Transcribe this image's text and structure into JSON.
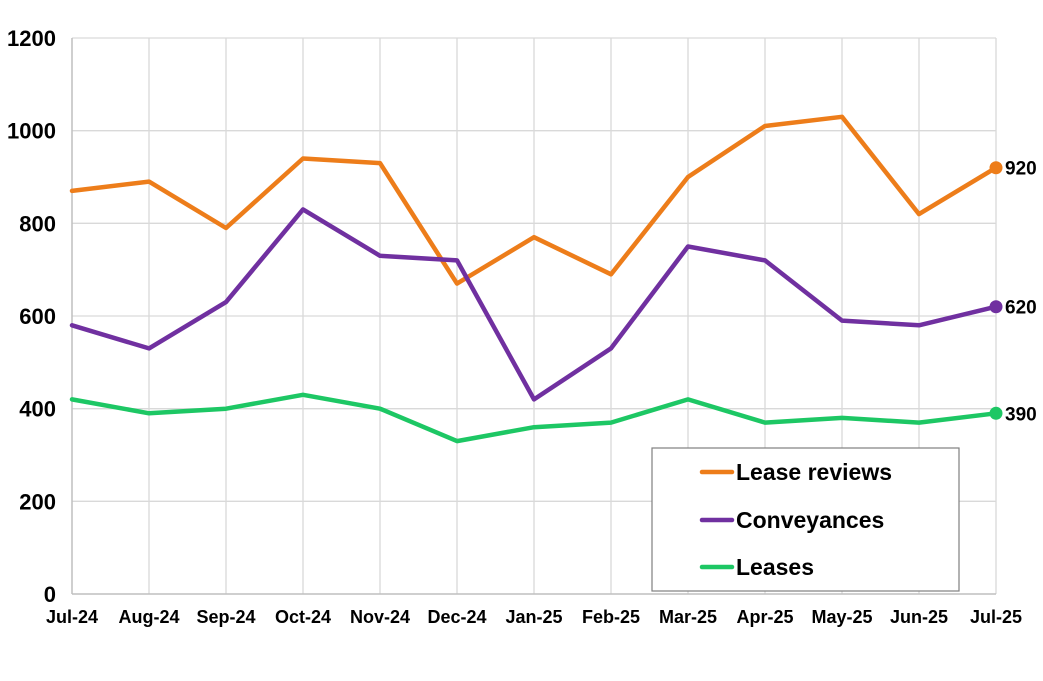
{
  "chart_data": {
    "type": "line",
    "title": "",
    "xlabel": "",
    "ylabel": "",
    "categories": [
      "Jul-24",
      "Aug-24",
      "Sep-24",
      "Oct-24",
      "Nov-24",
      "Dec-24",
      "Jan-25",
      "Feb-25",
      "Mar-25",
      "Apr-25",
      "May-25",
      "Jun-25",
      "Jul-25"
    ],
    "ylim": [
      0,
      1200
    ],
    "yticks": [
      0,
      200,
      400,
      600,
      800,
      1000,
      1200
    ],
    "grid": true,
    "legend_position": "bottom-right",
    "series": [
      {
        "name": "Lease reviews",
        "color": "#ED7D1A",
        "values": [
          870,
          890,
          790,
          940,
          930,
          670,
          770,
          690,
          900,
          1010,
          1030,
          820,
          920
        ],
        "end_label": "920"
      },
      {
        "name": "Conveyances",
        "color": "#7030A0",
        "values": [
          580,
          530,
          630,
          830,
          730,
          720,
          420,
          530,
          750,
          720,
          590,
          580,
          620
        ],
        "end_label": "620"
      },
      {
        "name": "Leases",
        "color": "#1DC764",
        "values": [
          420,
          390,
          400,
          430,
          400,
          330,
          360,
          370,
          420,
          370,
          380,
          370,
          390
        ],
        "end_label": "390"
      }
    ]
  }
}
